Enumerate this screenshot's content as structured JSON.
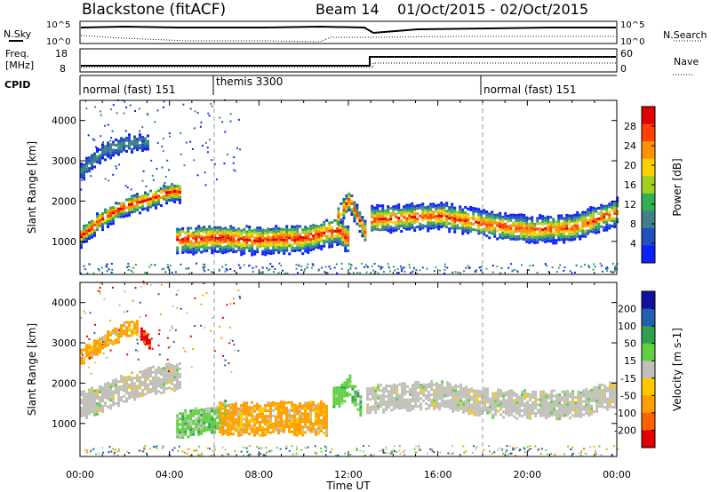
{
  "header": {
    "station": "Blackstone (fitACF)",
    "beam": "Beam 14",
    "dates": "01/Oct/2015 - 02/Oct/2015"
  },
  "strips": {
    "nsky_label": "N.Sky",
    "nsearch_label": "N.Search",
    "freq_label_1": "Freq.",
    "freq_label_2": "[MHz]",
    "nave_label": "Nave",
    "cpid_label": "CPID",
    "noise_ticks_left": [
      "10^5",
      "10^0"
    ],
    "noise_ticks_right": [
      "10^5",
      "10^0"
    ],
    "freq_ticks": [
      "18",
      "8"
    ],
    "nave_ticks": [
      "60",
      "0"
    ],
    "cpid_segments": [
      {
        "label": "normal (fast) 151",
        "start_h": 0,
        "end_h": 6
      },
      {
        "label": "themis 3300",
        "start_h": 6,
        "end_h": 18
      },
      {
        "label": "normal (fast) 151",
        "start_h": 18,
        "end_h": 24
      }
    ]
  },
  "colors": {
    "power": [
      "#0a20ff",
      "#2050c0",
      "#40808a",
      "#30b050",
      "#a0d020",
      "#ffd000",
      "#ff9000",
      "#ff4000",
      "#e00000"
    ],
    "velocity": [
      "#e00000",
      "#ff6000",
      "#ffa000",
      "#ffc800",
      "#c0c0b8",
      "#60d040",
      "#30a050",
      "#2060b0",
      "#1010a0"
    ]
  },
  "chart_data": [
    {
      "type": "heatmap",
      "name": "power-panel",
      "ylabel": "Slant Range [km]",
      "xlabel": "Time UT",
      "xlim": [
        0,
        24
      ],
      "ylim": [
        180,
        4500
      ],
      "x_ticks": [
        "00:00",
        "04:00",
        "08:00",
        "12:00",
        "16:00",
        "20:00",
        "00:00"
      ],
      "y_ticks": [
        1000,
        2000,
        3000,
        4000
      ],
      "colorbar_label": "Power [dB]",
      "colorbar_ticks": [
        "28",
        "24",
        "20",
        "16",
        "12",
        "8",
        "4"
      ],
      "bands": [
        {
          "x": [
            0,
            1,
            2,
            3,
            4,
            4.5
          ],
          "center_km": [
            1100,
            1550,
            1850,
            2000,
            2200,
            2200
          ],
          "width_km": 450,
          "level": "high"
        },
        {
          "x": [
            0,
            1,
            2,
            3
          ],
          "center_km": [
            2700,
            3200,
            3400,
            3450
          ],
          "width_km": 350,
          "level": "low"
        },
        {
          "x": [
            4.3,
            6,
            8,
            10,
            11.5,
            12
          ],
          "center_km": [
            1000,
            1050,
            1000,
            1050,
            1250,
            1000
          ],
          "width_km": 650,
          "level": "high"
        },
        {
          "x": [
            11.5,
            12,
            12.7
          ],
          "center_km": [
            1600,
            2000,
            1200
          ],
          "width_km": 500,
          "level": "mid"
        },
        {
          "x": [
            13,
            16,
            18,
            20,
            22,
            24
          ],
          "center_km": [
            1500,
            1600,
            1400,
            1250,
            1300,
            1700
          ],
          "width_km": 600,
          "level": "mid"
        }
      ]
    },
    {
      "type": "heatmap",
      "name": "velocity-panel",
      "ylabel": "Slant Range [km]",
      "xlabel": "Time UT",
      "xlim": [
        0,
        24
      ],
      "ylim": [
        180,
        4500
      ],
      "x_ticks": [
        "00:00",
        "04:00",
        "08:00",
        "12:00",
        "16:00",
        "20:00",
        "00:00"
      ],
      "y_ticks": [
        1000,
        2000,
        3000,
        4000
      ],
      "colorbar_label": "Velocity [m s-1]",
      "colorbar_ticks": [
        "200",
        "100",
        "50",
        "15",
        "-15",
        "-50",
        "-100",
        "-200"
      ],
      "bands": [
        {
          "x": [
            0,
            1,
            2,
            3,
            4,
            4.5
          ],
          "center_km": [
            1400,
            1600,
            1850,
            2000,
            2100,
            2100
          ],
          "width_km": 600,
          "level": "gray"
        },
        {
          "x": [
            0,
            1,
            2,
            2.6
          ],
          "center_km": [
            2600,
            3000,
            3300,
            3400
          ],
          "width_km": 350,
          "level": "orange"
        },
        {
          "x": [
            2.7,
            3.1
          ],
          "center_km": [
            3200,
            3000
          ],
          "width_km": 300,
          "level": "red"
        },
        {
          "x": [
            4.3,
            5,
            6,
            6.5
          ],
          "center_km": [
            900,
            1000,
            1100,
            1200
          ],
          "width_km": 600,
          "level": "green"
        },
        {
          "x": [
            6.2,
            8,
            10,
            11
          ],
          "center_km": [
            1100,
            1100,
            1100,
            1100
          ],
          "width_km": 750,
          "level": "orange"
        },
        {
          "x": [
            11.3,
            12,
            12.5
          ],
          "center_km": [
            1600,
            1900,
            1400
          ],
          "width_km": 500,
          "level": "green"
        },
        {
          "x": [
            12.8,
            16,
            18,
            20,
            22,
            24
          ],
          "center_km": [
            1600,
            1700,
            1500,
            1450,
            1450,
            1700
          ],
          "width_km": 650,
          "level": "gray"
        }
      ]
    }
  ]
}
